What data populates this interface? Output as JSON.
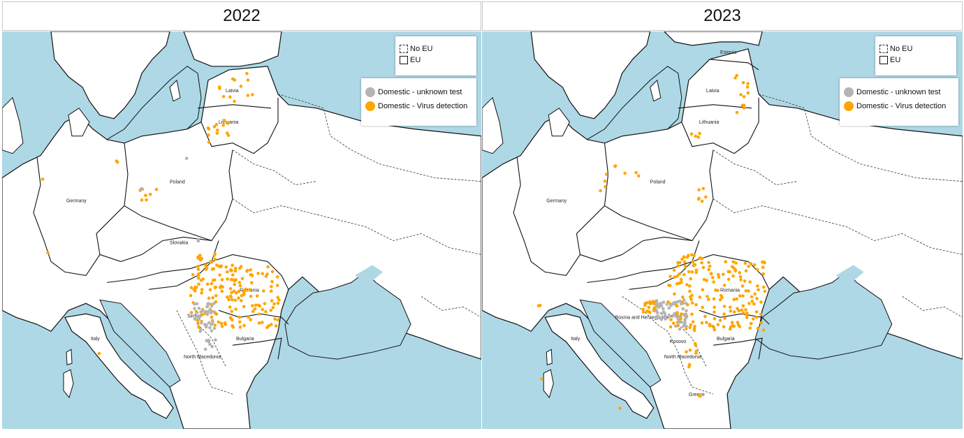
{
  "panels": [
    {
      "year": "2022",
      "eu_legend": {
        "no_eu": "No EU",
        "eu": "EU"
      },
      "legend": {
        "unknown": "Domestic - unknown test",
        "virus": "Domestic - Virus detection"
      },
      "countries": [
        "Latvia",
        "Lithuania",
        "Poland",
        "Germany",
        "Slovakia",
        "Romania",
        "Serbia",
        "Bulgaria",
        "North Macedonia",
        "Italy"
      ]
    },
    {
      "year": "2023",
      "eu_legend": {
        "no_eu": "No EU",
        "eu": "EU"
      },
      "legend": {
        "unknown": "Domestic - unknown test",
        "virus": "Domestic - Virus detection"
      },
      "countries": [
        "Estonia",
        "Latvia",
        "Lithuania",
        "Poland",
        "Germany",
        "Romania",
        "Bosnia and Herzegovina",
        "Serbia",
        "Kosovo",
        "Bulgaria",
        "North Macedonia",
        "Italy",
        "Greece"
      ]
    }
  ],
  "colors": {
    "sea": "#aed8e6",
    "land": "#ffffff",
    "virus": "#ffa500",
    "unknown": "#b4b4b4"
  }
}
